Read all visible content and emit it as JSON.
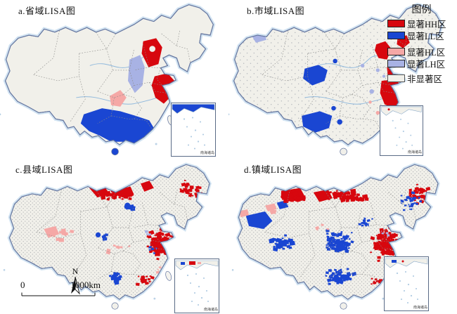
{
  "figure": {
    "panels": [
      {
        "id": "a",
        "title": "a.省域LISA图"
      },
      {
        "id": "b",
        "title": "b.市域LISA图"
      },
      {
        "id": "c",
        "title": "c.县域LISA图"
      },
      {
        "id": "d",
        "title": "d.镇域LISA图"
      }
    ],
    "legend": {
      "title": "图例",
      "items": [
        {
          "key": "hh",
          "label": "显著HH区",
          "color": "#d7070e"
        },
        {
          "key": "ll",
          "label": "显著LL区",
          "color": "#1a46d2"
        },
        {
          "key": "hl",
          "label": "显著HL区",
          "color": "#f5a8a6"
        },
        {
          "key": "lh",
          "label": "显著LH区",
          "color": "#a8b2e4"
        },
        {
          "key": "ns",
          "label": "非显著区",
          "color": "#f1f0ea"
        }
      ]
    },
    "map_accessories": {
      "north_label": "N",
      "scale_zero": "0",
      "scale_label": "1000km",
      "inset_label": "南海诸岛"
    },
    "colors": {
      "hh": "#d7070e",
      "ll": "#1a46d2",
      "hl": "#f5a8a6",
      "lh": "#a8b2e4",
      "ns": "#f1f0ea",
      "coast": "#6677a0",
      "glow": "#c8ddee"
    }
  }
}
